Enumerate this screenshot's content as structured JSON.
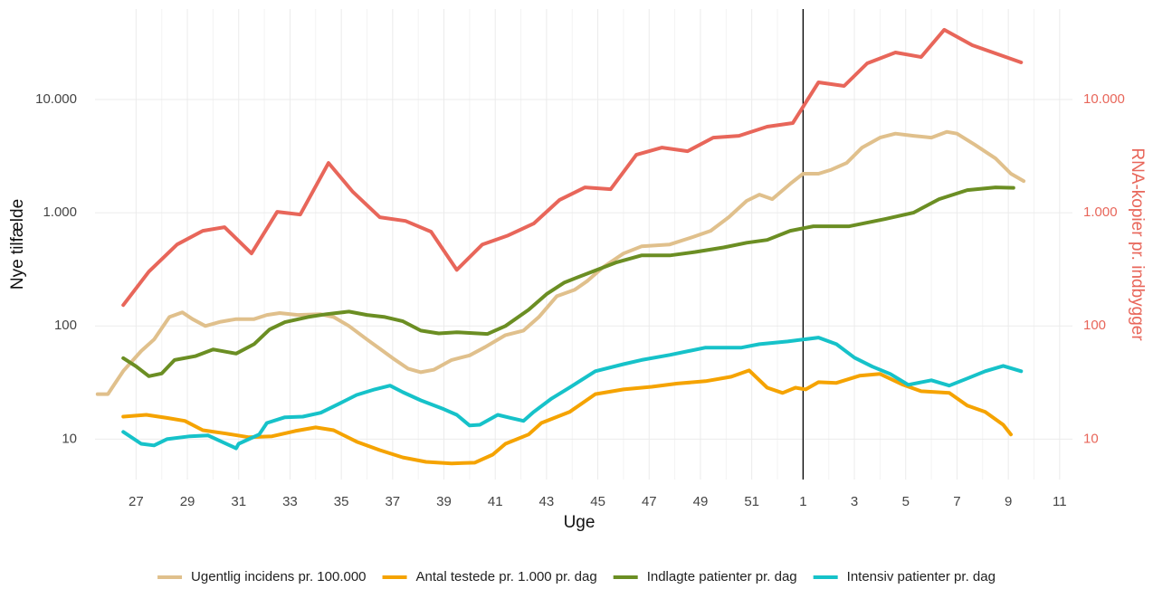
{
  "chart_data": {
    "type": "line",
    "x_label": "Uge",
    "y_label": "Nye tilfælde",
    "y2_label": "RNA-kopier pr. indbygger",
    "log_y": true,
    "grid": true,
    "legend": "bottom",
    "y2color": "#e8665a",
    "vline": 53,
    "xlim": [
      25.4,
      63.5
    ],
    "xticks": [
      27,
      29,
      31,
      33,
      35,
      37,
      39,
      41,
      43,
      45,
      47,
      49,
      51,
      {
        "value": 53,
        "label": "1"
      },
      {
        "value": 55,
        "label": "3"
      },
      {
        "value": 57,
        "label": "5"
      },
      {
        "value": 59,
        "label": "7"
      },
      {
        "value": 61,
        "label": "9"
      },
      {
        "value": 63,
        "label": "11"
      }
    ],
    "ylim": [
      4.4,
      63000
    ],
    "yticks": [
      10,
      100,
      {
        "value": 1000,
        "label": "1.000"
      },
      {
        "value": 10000,
        "label": "10.000"
      }
    ],
    "y2lim": [
      4.4,
      63000
    ],
    "y2ticks": [
      10,
      100,
      {
        "value": 1000,
        "label": "1.000"
      },
      {
        "value": 10000,
        "label": "10.000"
      }
    ],
    "series": [
      {
        "color": "#e8665a",
        "axis": "y2",
        "x": [
          26.5,
          27.5,
          28.6,
          29.6,
          30.45,
          31.5,
          32.5,
          33.4,
          34.5,
          35.45,
          36.5,
          37.5,
          38.5,
          39.5,
          40.5,
          41.5,
          42.5,
          43.5,
          44.5,
          45.5,
          46.5,
          47.5,
          48.5,
          49.5,
          50.5,
          51.6,
          52.6,
          53.6,
          54.6,
          55.5,
          56.6,
          57.6,
          58.5,
          59.6,
          60.6,
          61.5
        ],
        "values": [
          153,
          302,
          525,
          692,
          745,
          437,
          1020,
          964,
          2754,
          1528,
          912,
          847,
          680,
          313,
          525,
          631,
          802,
          1294,
          1675,
          1614,
          3251,
          3767,
          3499,
          4613,
          4786,
          5754,
          6194,
          14191,
          13183,
          20893,
          26062,
          23768,
          41305,
          30200,
          25119,
          21281
        ]
      },
      {
        "name": "Ugentlig incidens pr. 100.000",
        "color": "#e0c08c",
        "x": [
          25.5,
          25.9,
          26.5,
          27.2,
          27.7,
          28.3,
          28.8,
          29.2,
          29.7,
          30.3,
          30.9,
          31.6,
          32.1,
          32.6,
          33.3,
          34.2,
          34.7,
          35.3,
          36.0,
          36.5,
          37.0,
          37.6,
          38.1,
          38.6,
          39.3,
          40.0,
          40.6,
          41.4,
          42.1,
          42.7,
          43.4,
          44.1,
          44.6,
          45.2,
          46.0,
          46.7,
          47.8,
          48.7,
          49.4,
          50.1,
          50.8,
          51.3,
          51.8,
          52.5,
          53.0,
          53.6,
          54.1,
          54.7,
          55.3,
          56.0,
          56.6,
          57.3,
          58.0,
          58.6,
          59.0,
          59.7,
          60.5,
          61.1,
          61.6
        ],
        "values": [
          25,
          25,
          40,
          60,
          76,
          120,
          132,
          115,
          100,
          109,
          115,
          115,
          125,
          130,
          125,
          127,
          120,
          100,
          76,
          63,
          52,
          42,
          39,
          41,
          50,
          55,
          65,
          83,
          91,
          120,
          183,
          209,
          251,
          330,
          436,
          505,
          525,
          610,
          692,
          912,
          1273,
          1445,
          1318,
          1803,
          2213,
          2213,
          2399,
          2754,
          3767,
          4613,
          5000,
          4786,
          4613,
          5183,
          5000,
          3981,
          3020,
          2213,
          1905
        ]
      },
      {
        "name": "Antal testede pr. 1.000 pr. dag",
        "color": "#f5a300",
        "x": [
          26.5,
          27.4,
          28.2,
          28.9,
          29.6,
          30.5,
          31.4,
          32.3,
          33.2,
          34.0,
          34.7,
          35.6,
          36.5,
          37.4,
          38.3,
          39.3,
          40.2,
          40.9,
          41.4,
          42.3,
          42.8,
          43.9,
          44.9,
          46.0,
          47.1,
          48.1,
          49.2,
          50.2,
          50.9,
          51.6,
          52.2,
          52.7,
          53.1,
          53.6,
          54.3,
          55.2,
          56.0,
          56.9,
          57.6,
          58.7,
          59.4,
          60.1,
          60.8,
          61.1
        ],
        "values": [
          15.8,
          16.4,
          15.4,
          14.5,
          12.0,
          11.2,
          10.4,
          10.6,
          11.8,
          12.7,
          12.0,
          9.5,
          8.0,
          6.9,
          6.3,
          6.1,
          6.2,
          7.3,
          9.1,
          11.0,
          13.9,
          17.4,
          25,
          27.5,
          29,
          31,
          32.5,
          35.6,
          40.5,
          28.5,
          25.6,
          28.5,
          27.5,
          31.9,
          31.4,
          36.3,
          37.7,
          30.2,
          26.5,
          25.6,
          19.8,
          17.4,
          13.4,
          11.0
        ]
      },
      {
        "name": "Indlagte patienter pr. dag",
        "color": "#6b8e23",
        "x": [
          26.5,
          27.0,
          27.5,
          28.0,
          28.5,
          29.3,
          30.0,
          30.9,
          31.6,
          32.2,
          32.8,
          33.7,
          34.4,
          35.3,
          36.0,
          36.7,
          37.4,
          38.1,
          38.8,
          39.5,
          40.7,
          41.4,
          42.3,
          43.0,
          43.7,
          44.6,
          45.7,
          46.7,
          47.8,
          48.8,
          49.9,
          50.8,
          51.6,
          52.5,
          53.4,
          54.8,
          56.2,
          57.3,
          58.3,
          59.4,
          60.5,
          61.2
        ],
        "values": [
          52,
          44,
          36,
          38,
          50,
          54,
          62,
          57,
          69,
          93,
          108,
          120,
          127,
          134,
          125,
          120,
          110,
          91,
          86,
          88,
          85,
          100,
          139,
          191,
          242,
          291,
          363,
          420,
          420,
          450,
          494,
          543,
          575,
          692,
          759,
          759,
          880,
          1000,
          1318,
          1585,
          1675,
          1660
        ]
      },
      {
        "name": "Intensiv patienter pr. dag",
        "color": "#16c2c9",
        "x": [
          26.5,
          27.2,
          27.7,
          28.2,
          29.1,
          29.8,
          30.9,
          31.0,
          31.8,
          32.1,
          32.8,
          33.5,
          34.2,
          34.9,
          35.6,
          36.3,
          36.9,
          37.4,
          38.1,
          39.0,
          39.5,
          40.0,
          40.4,
          41.1,
          41.6,
          42.1,
          42.5,
          43.2,
          43.9,
          44.9,
          46.0,
          46.7,
          47.8,
          49.2,
          50.6,
          51.3,
          52.4,
          53.6,
          54.3,
          55.0,
          55.7,
          56.4,
          57.1,
          58.0,
          58.7,
          59.4,
          60.1,
          60.8,
          61.5
        ],
        "values": [
          11.6,
          9.1,
          8.8,
          10,
          10.6,
          10.8,
          8.3,
          9.1,
          11,
          13.9,
          15.6,
          15.8,
          17.1,
          20.5,
          24.6,
          27.5,
          29.7,
          26,
          22,
          18.4,
          16.4,
          13.2,
          13.4,
          16.4,
          15.4,
          14.5,
          17.4,
          22.9,
          28.6,
          39.8,
          46,
          50,
          55.5,
          64.4,
          64.4,
          69,
          73,
          79,
          69,
          52.5,
          43.7,
          37.7,
          30.2,
          33.1,
          29.7,
          34.4,
          39.8,
          44.4,
          39.8
        ]
      }
    ]
  }
}
